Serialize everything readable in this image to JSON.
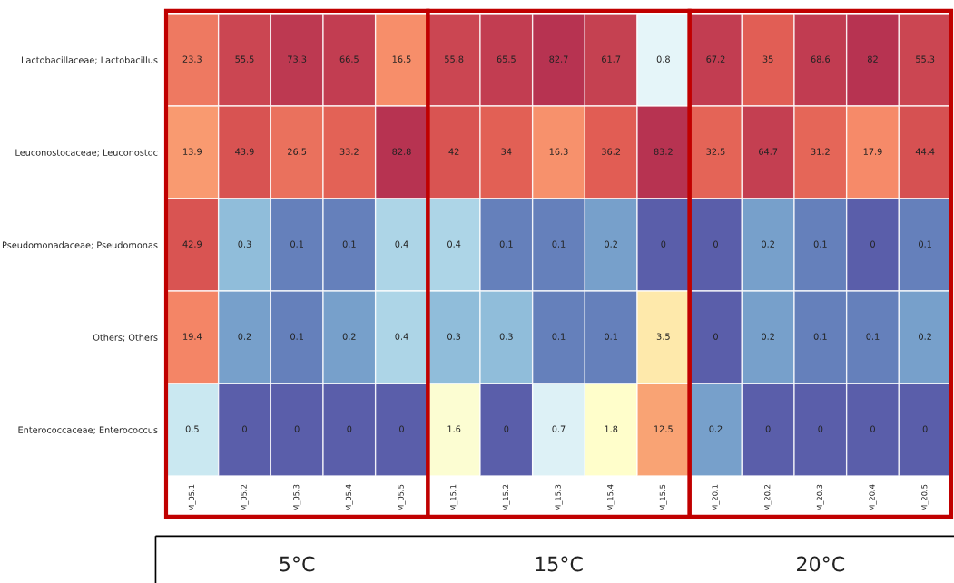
{
  "chart_data": {
    "type": "heatmap",
    "categories": [
      "M_05.1",
      "M_05.2",
      "M_05.3",
      "M_05.4",
      "M_05.5",
      "M_15.1",
      "M_15.2",
      "M_15.3",
      "M_15.4",
      "M_15.5",
      "M_20.1",
      "M_20.2",
      "M_20.3",
      "M_20.4",
      "M_20.5"
    ],
    "y_categories": [
      "Lactobacillaceae; Lactobacillus",
      "Leuconostocaceae; Leuconostoc",
      "Pseudomonadaceae; Pseudomonas",
      "Others; Others",
      "Enterococcaceae; Enterococcus"
    ],
    "cells": [
      [
        23.3,
        55.5,
        73.3,
        66.5,
        16.5,
        55.8,
        65.5,
        82.7,
        61.7,
        0.8,
        67.2,
        35,
        68.6,
        82,
        55.3
      ],
      [
        13.9,
        43.9,
        26.5,
        33.2,
        82.8,
        42,
        34,
        16.3,
        36.2,
        83.2,
        32.5,
        64.7,
        31.2,
        17.9,
        44.4
      ],
      [
        42.9,
        0.3,
        0.1,
        0.1,
        0.4,
        0.4,
        0.1,
        0.1,
        0.2,
        0,
        0,
        0.2,
        0.1,
        0,
        0.1
      ],
      [
        19.4,
        0.2,
        0.1,
        0.2,
        0.4,
        0.3,
        0.3,
        0.1,
        0.1,
        3.5,
        0,
        0.2,
        0.1,
        0.1,
        0.2
      ],
      [
        0.5,
        0,
        0,
        0,
        0,
        1.6,
        0,
        0.7,
        1.8,
        12.5,
        0.2,
        0,
        0,
        0,
        0
      ]
    ],
    "data_labels": true,
    "annotations": [
      "5°C",
      "15°C",
      "20°C"
    ]
  }
}
